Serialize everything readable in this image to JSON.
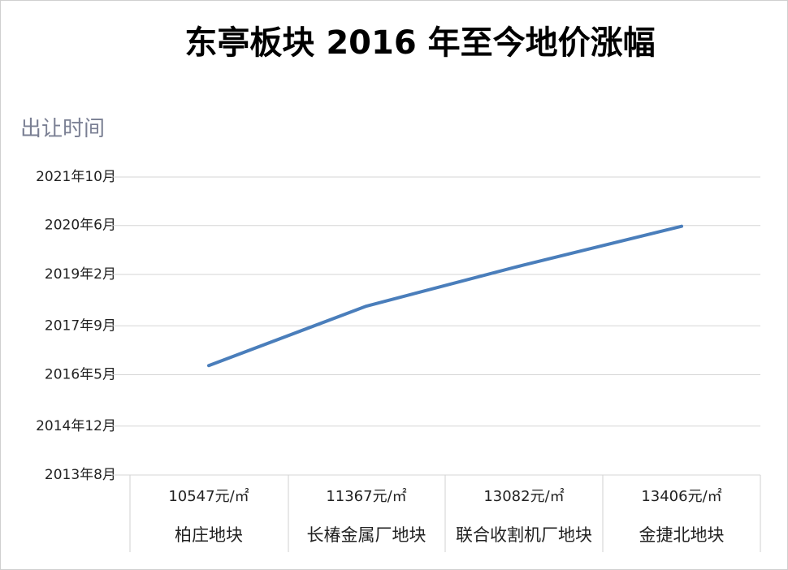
{
  "chart_data": {
    "type": "line",
    "title": "东亭板块 2016 年至今地价涨幅",
    "y_label": "出让时间",
    "categories": [
      "柏庄地块",
      "长椿金属厂地块",
      "联合收割机厂地块",
      "金捷北地块"
    ],
    "category_prices": [
      "10547元/㎡",
      "11367元/㎡",
      "13082元/㎡",
      "13406元/㎡"
    ],
    "values": [
      2016.58,
      2018.21,
      2019.34,
      2020.4
    ],
    "color": "#4a7ebb",
    "ylim": [
      2013.58,
      2021.75
    ],
    "yticks": [
      {
        "value": 2013.58,
        "label": "2013年8月"
      },
      {
        "value": 2014.92,
        "label": "2014年12月"
      },
      {
        "value": 2016.33,
        "label": "2016年5月"
      },
      {
        "value": 2017.67,
        "label": "2017年9月"
      },
      {
        "value": 2019.08,
        "label": "2019年2月"
      },
      {
        "value": 2020.42,
        "label": "2020年6月"
      },
      {
        "value": 2021.75,
        "label": "2021年10月"
      }
    ],
    "grid": true
  }
}
